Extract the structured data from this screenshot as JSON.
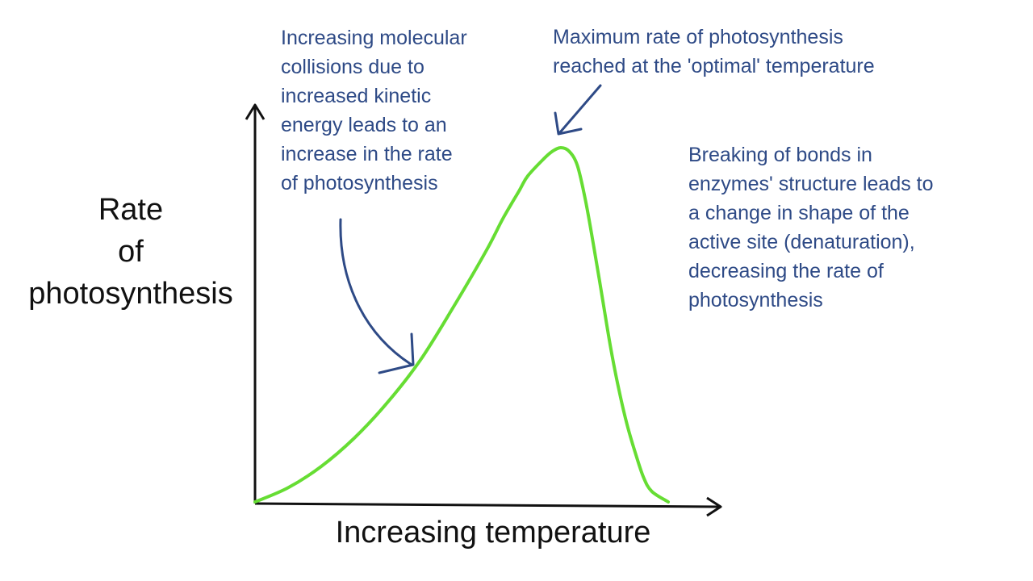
{
  "chart_data": {
    "type": "line",
    "title": "",
    "xlabel": "Increasing temperature",
    "ylabel_lines": [
      "Rate",
      "of",
      "photosynthesis"
    ],
    "xlim": [
      0,
      100
    ],
    "ylim": [
      0,
      100
    ],
    "grid": false,
    "legend": "none",
    "series": [
      {
        "name": "rate of photosynthesis",
        "x": [
          0,
          8,
          16,
          24,
          32,
          40,
          48,
          56,
          60,
          64,
          66,
          70,
          72,
          74,
          76,
          78,
          80,
          82,
          84,
          86,
          88,
          90,
          92,
          94,
          96,
          100
        ],
        "y": [
          0,
          4,
          10,
          18,
          28,
          40,
          55,
          71,
          80,
          88,
          92,
          97,
          99,
          100,
          99,
          95,
          85,
          72,
          58,
          44,
          32,
          22,
          14,
          7,
          3,
          0
        ]
      }
    ],
    "annotations": [
      {
        "id": "increasing",
        "lines": [
          "Increasing molecular",
          "collisions due to",
          "increased kinetic",
          "energy leads to an",
          "increase in the rate",
          "of photosynthesis"
        ]
      },
      {
        "id": "maximum",
        "lines": [
          "Maximum rate of photosynthesis",
          "reached at the 'optimal' temperature"
        ]
      },
      {
        "id": "denaturation",
        "lines": [
          "Breaking of bonds in",
          "enzymes' structure leads to",
          "a change in shape of the",
          "active site (denaturation),",
          "decreasing the rate of",
          "photosynthesis"
        ]
      }
    ]
  },
  "colors": {
    "curve": "#66dd33",
    "annotation": "#2e4a86",
    "axis": "#111111"
  }
}
